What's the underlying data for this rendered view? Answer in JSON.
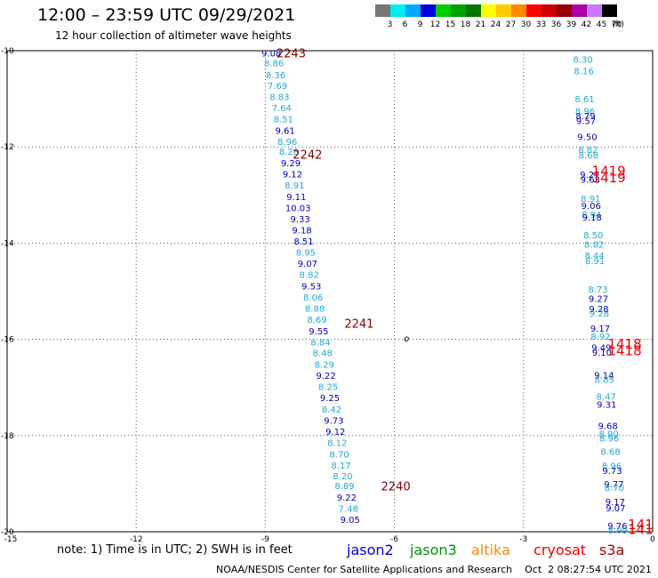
{
  "header": {
    "title": "12:00 – 23:59 UTC 09/29/2021",
    "subtitle": "12 hour collection of altimeter wave heights"
  },
  "legend": {
    "unit": "(ft)",
    "items": [
      {
        "label": "3",
        "color": "#777777"
      },
      {
        "label": "6",
        "color": "#00eeee"
      },
      {
        "label": "9",
        "color": "#00aaff"
      },
      {
        "label": "12",
        "color": "#0000dd"
      },
      {
        "label": "15",
        "color": "#00cc00"
      },
      {
        "label": "18",
        "color": "#00a000"
      },
      {
        "label": "21",
        "color": "#007700"
      },
      {
        "label": "24",
        "color": "#ffff00"
      },
      {
        "label": "27",
        "color": "#ffcc00"
      },
      {
        "label": "30",
        "color": "#ff8800"
      },
      {
        "label": "33",
        "color": "#ff0000"
      },
      {
        "label": "36",
        "color": "#cc0000"
      },
      {
        "label": "39",
        "color": "#990000"
      },
      {
        "label": "42",
        "color": "#aa00aa"
      },
      {
        "label": "45",
        "color": "#cc77ff"
      },
      {
        "label": "70",
        "color": "#000000"
      }
    ]
  },
  "map": {
    "lon_range": [
      -15,
      0
    ],
    "lat_range": [
      -20,
      -10
    ],
    "grid": true,
    "lon_ticks": [
      {
        "value": -15,
        "label": "-15"
      },
      {
        "value": -12,
        "label": "-12"
      },
      {
        "value": -9,
        "label": "-9"
      },
      {
        "value": -6,
        "label": "-6"
      },
      {
        "value": -3,
        "label": "-3"
      },
      {
        "value": 0,
        "label": "0"
      }
    ],
    "lat_ticks": [
      {
        "value": -10,
        "label": "-10"
      },
      {
        "value": -12,
        "label": "-12"
      },
      {
        "value": -14,
        "label": "-14"
      },
      {
        "value": -16,
        "label": "-16"
      },
      {
        "value": -18,
        "label": "-18"
      },
      {
        "value": -20,
        "label": "-20"
      }
    ],
    "island_label": "o",
    "island_position": {
      "lon": -5.72,
      "lat": -15.97
    },
    "colors": {
      "light": "#22aacc",
      "dark": "#0000bb",
      "time": "#880000",
      "time_red": "#ee0000"
    },
    "tracks": [
      {
        "name": "west",
        "points": [
          {
            "lon": -8.86,
            "lat": -10.05,
            "value": "9.08",
            "c": "dark"
          },
          {
            "lon": -8.8,
            "lat": -10.25,
            "value": "8.86",
            "c": "light"
          },
          {
            "lon": -8.76,
            "lat": -10.5,
            "value": "8.36",
            "c": "light"
          },
          {
            "lon": -8.72,
            "lat": -10.72,
            "value": "7.69",
            "c": "light"
          },
          {
            "lon": -8.67,
            "lat": -10.95,
            "value": "8.83",
            "c": "light"
          },
          {
            "lon": -8.62,
            "lat": -11.18,
            "value": "7.64",
            "c": "light"
          },
          {
            "lon": -8.58,
            "lat": -11.41,
            "value": "8.51",
            "c": "light"
          },
          {
            "lon": -8.54,
            "lat": -11.65,
            "value": "9.61",
            "c": "dark"
          },
          {
            "lon": -8.49,
            "lat": -11.89,
            "value": "8.96",
            "c": "light"
          },
          {
            "lon": -8.45,
            "lat": -12.09,
            "value": "8.28",
            "c": "light"
          },
          {
            "lon": -8.41,
            "lat": -12.33,
            "value": "9.29",
            "c": "dark"
          },
          {
            "lon": -8.37,
            "lat": -12.56,
            "value": "9.12",
            "c": "dark"
          },
          {
            "lon": -8.32,
            "lat": -12.79,
            "value": "8.91",
            "c": "light"
          },
          {
            "lon": -8.28,
            "lat": -13.03,
            "value": "9.11",
            "c": "dark"
          },
          {
            "lon": -8.24,
            "lat": -13.26,
            "value": "10.03",
            "c": "dark"
          },
          {
            "lon": -8.19,
            "lat": -13.49,
            "value": "9.33",
            "c": "dark"
          },
          {
            "lon": -8.15,
            "lat": -13.72,
            "value": "9.18",
            "c": "dark"
          },
          {
            "lon": -8.11,
            "lat": -13.96,
            "value": "8.51",
            "c": "dark"
          },
          {
            "lon": -8.06,
            "lat": -14.19,
            "value": "8.95",
            "c": "light"
          },
          {
            "lon": -8.02,
            "lat": -14.42,
            "value": "9.07",
            "c": "dark"
          },
          {
            "lon": -7.98,
            "lat": -14.65,
            "value": "8.82",
            "c": "light"
          },
          {
            "lon": -7.93,
            "lat": -14.89,
            "value": "9.53",
            "c": "dark"
          },
          {
            "lon": -7.89,
            "lat": -15.12,
            "value": "8.06",
            "c": "light"
          },
          {
            "lon": -7.85,
            "lat": -15.35,
            "value": "8.88",
            "c": "light"
          },
          {
            "lon": -7.8,
            "lat": -15.58,
            "value": "8.69",
            "c": "light"
          },
          {
            "lon": -7.76,
            "lat": -15.82,
            "value": "9.55",
            "c": "dark"
          },
          {
            "lon": -7.72,
            "lat": -16.05,
            "value": "8.84",
            "c": "light"
          },
          {
            "lon": -7.67,
            "lat": -16.28,
            "value": "8.48",
            "c": "light"
          },
          {
            "lon": -7.63,
            "lat": -16.52,
            "value": "8.29",
            "c": "light"
          },
          {
            "lon": -7.59,
            "lat": -16.75,
            "value": "9.22",
            "c": "dark"
          },
          {
            "lon": -7.54,
            "lat": -16.98,
            "value": "8.25",
            "c": "light"
          },
          {
            "lon": -7.5,
            "lat": -17.21,
            "value": "9.25",
            "c": "dark"
          },
          {
            "lon": -7.46,
            "lat": -17.45,
            "value": "8.42",
            "c": "light"
          },
          {
            "lon": -7.41,
            "lat": -17.68,
            "value": "9.73",
            "c": "dark"
          },
          {
            "lon": -7.37,
            "lat": -17.91,
            "value": "9.12",
            "c": "dark"
          },
          {
            "lon": -7.33,
            "lat": -18.14,
            "value": "8.12",
            "c": "light"
          },
          {
            "lon": -7.28,
            "lat": -18.38,
            "value": "8.70",
            "c": "light"
          },
          {
            "lon": -7.24,
            "lat": -18.61,
            "value": "8.17",
            "c": "light"
          },
          {
            "lon": -7.2,
            "lat": -18.84,
            "value": "8.20",
            "c": "light"
          },
          {
            "lon": -7.16,
            "lat": -19.04,
            "value": "8.89",
            "c": "light"
          },
          {
            "lon": -7.11,
            "lat": -19.28,
            "value": "9.22",
            "c": "dark"
          },
          {
            "lon": -7.07,
            "lat": -19.51,
            "value": "7.48",
            "c": "light"
          },
          {
            "lon": -7.03,
            "lat": -19.74,
            "value": "9.05",
            "c": "dark"
          }
        ]
      },
      {
        "name": "east",
        "points": [
          {
            "lon": -1.62,
            "lat": -10.18,
            "value": "8.30",
            "c": "light"
          },
          {
            "lon": -1.6,
            "lat": -10.42,
            "value": "8.16",
            "c": "light"
          },
          {
            "lon": -1.58,
            "lat": -11.0,
            "value": "8.61",
            "c": "light"
          },
          {
            "lon": -1.57,
            "lat": -11.25,
            "value": "8.96",
            "c": "light"
          },
          {
            "lon": -1.56,
            "lat": -11.35,
            "value": "8.79",
            "c": "dark"
          },
          {
            "lon": -1.55,
            "lat": -11.45,
            "value": "9.57",
            "c": "dark"
          },
          {
            "lon": -1.52,
            "lat": -11.78,
            "value": "9.50",
            "c": "dark"
          },
          {
            "lon": -1.5,
            "lat": -12.05,
            "value": "8.82",
            "c": "light"
          },
          {
            "lon": -1.49,
            "lat": -12.16,
            "value": "8.68",
            "c": "light"
          },
          {
            "lon": -1.46,
            "lat": -12.57,
            "value": "9.27",
            "c": "dark"
          },
          {
            "lon": -1.45,
            "lat": -12.67,
            "value": "9.63",
            "c": "dark"
          },
          {
            "lon": -1.44,
            "lat": -13.07,
            "value": "8.91",
            "c": "light"
          },
          {
            "lon": -1.43,
            "lat": -13.22,
            "value": "9.06",
            "c": "dark"
          },
          {
            "lon": -1.42,
            "lat": -13.4,
            "value": "8.94",
            "c": "light"
          },
          {
            "lon": -1.41,
            "lat": -13.46,
            "value": "9.18",
            "c": "dark"
          },
          {
            "lon": -1.38,
            "lat": -13.83,
            "value": "8.50",
            "c": "light"
          },
          {
            "lon": -1.36,
            "lat": -14.02,
            "value": "8.82",
            "c": "light"
          },
          {
            "lon": -1.35,
            "lat": -14.25,
            "value": "8.44",
            "c": "light"
          },
          {
            "lon": -1.34,
            "lat": -14.36,
            "value": "8.91",
            "c": "light"
          },
          {
            "lon": -1.27,
            "lat": -14.95,
            "value": "8.73",
            "c": "light"
          },
          {
            "lon": -1.26,
            "lat": -15.15,
            "value": "9.27",
            "c": "dark"
          },
          {
            "lon": -1.25,
            "lat": -15.36,
            "value": "9.28",
            "c": "dark"
          },
          {
            "lon": -1.24,
            "lat": -15.45,
            "value": "9.28",
            "c": "light"
          },
          {
            "lon": -1.22,
            "lat": -15.77,
            "value": "9.17",
            "c": "dark"
          },
          {
            "lon": -1.21,
            "lat": -15.93,
            "value": "8.92",
            "c": "light"
          },
          {
            "lon": -1.19,
            "lat": -16.16,
            "value": "9.49",
            "c": "dark"
          },
          {
            "lon": -1.18,
            "lat": -16.27,
            "value": "9.10",
            "c": "dark"
          },
          {
            "lon": -1.13,
            "lat": -16.74,
            "value": "9.14",
            "c": "dark"
          },
          {
            "lon": -1.12,
            "lat": -16.83,
            "value": "8.85",
            "c": "light"
          },
          {
            "lon": -1.08,
            "lat": -17.18,
            "value": "8.47",
            "c": "light"
          },
          {
            "lon": -1.07,
            "lat": -17.35,
            "value": "9.31",
            "c": "dark"
          },
          {
            "lon": -1.04,
            "lat": -17.79,
            "value": "9.68",
            "c": "dark"
          },
          {
            "lon": -1.02,
            "lat": -17.96,
            "value": "8.90",
            "c": "light"
          },
          {
            "lon": -1.01,
            "lat": -18.05,
            "value": "8.96",
            "c": "light"
          },
          {
            "lon": -0.98,
            "lat": -18.33,
            "value": "8.68",
            "c": "light"
          },
          {
            "lon": -0.95,
            "lat": -18.62,
            "value": "8.96",
            "c": "light"
          },
          {
            "lon": -0.94,
            "lat": -18.72,
            "value": "9.73",
            "c": "dark"
          },
          {
            "lon": -0.9,
            "lat": -19.0,
            "value": "9.77",
            "c": "dark"
          },
          {
            "lon": -0.89,
            "lat": -19.08,
            "value": "8.70",
            "c": "light"
          },
          {
            "lon": -0.87,
            "lat": -19.37,
            "value": "9.17",
            "c": "dark"
          },
          {
            "lon": -0.86,
            "lat": -19.5,
            "value": "9.07",
            "c": "dark"
          },
          {
            "lon": -0.82,
            "lat": -19.87,
            "value": "9.76",
            "c": "dark"
          },
          {
            "lon": -0.81,
            "lat": -19.96,
            "value": "8.99",
            "c": "light"
          }
        ]
      }
    ],
    "time_labels": [
      {
        "lon": -8.4,
        "lat": -10.05,
        "text": "2243",
        "c": "time",
        "size": 13
      },
      {
        "lon": -8.02,
        "lat": -12.15,
        "text": "2242",
        "c": "time",
        "size": 13
      },
      {
        "lon": -6.82,
        "lat": -15.67,
        "text": "2241",
        "c": "time",
        "size": 13
      },
      {
        "lon": -5.97,
        "lat": -19.05,
        "text": "2240",
        "c": "time",
        "size": 13
      },
      {
        "lon": -1.02,
        "lat": -12.5,
        "text": "1419",
        "c": "time_red",
        "size": 15
      },
      {
        "lon": -1.02,
        "lat": -12.64,
        "text": "1419",
        "c": "time_red",
        "size": 15
      },
      {
        "lon": -0.65,
        "lat": -16.1,
        "text": "1418",
        "c": "time_red",
        "size": 15
      },
      {
        "lon": -0.65,
        "lat": -16.24,
        "text": "1418",
        "c": "time_red",
        "size": 15
      },
      {
        "lon": -0.28,
        "lat": -19.85,
        "text": "141",
        "c": "time_red",
        "size": 15
      },
      {
        "lon": -0.28,
        "lat": -19.95,
        "text": "141",
        "c": "time_red",
        "size": 15
      }
    ]
  },
  "note": "note: 1) Time is in UTC; 2) SWH is in feet",
  "satellites": [
    {
      "name": "jason2",
      "color": "#0000dd"
    },
    {
      "name": "jason3",
      "color": "#009900"
    },
    {
      "name": "altika",
      "color": "#ff8800"
    },
    {
      "name": "cryosat",
      "color": "#ee0000"
    },
    {
      "name": "s3a",
      "color": "#aa0000"
    }
  ],
  "credit": "NOAA/NESDIS Center for Satellite Applications and Research    Oct  2 08:27:54 UTC 2021"
}
